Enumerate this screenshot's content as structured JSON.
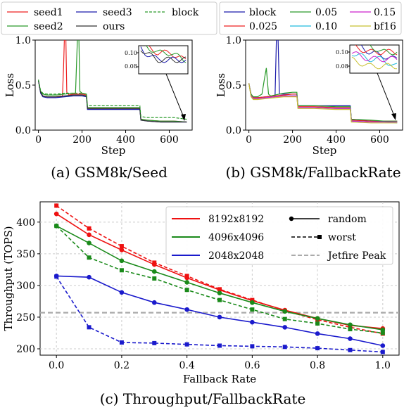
{
  "chart_data": [
    {
      "type": "line",
      "caption": "(a) GSM8k/Seed",
      "xlabel": "Step",
      "ylabel": "Loss",
      "xlim": [
        -15,
        705
      ],
      "ylim": [
        0.0,
        1.0
      ],
      "xticks": [
        "0",
        "200",
        "400",
        "600"
      ],
      "yticks": [
        "0.0",
        "0.5",
        "1.0"
      ],
      "legend_location": "top (outside, above plot)",
      "series": [
        {
          "name": "seed1",
          "color": "#ee2222",
          "dash": "solid",
          "x": [
            0,
            10,
            20,
            40,
            60,
            80,
            100,
            110,
            115,
            120,
            125,
            130,
            140,
            160,
            180,
            200,
            220,
            225,
            240,
            300,
            350,
            400,
            450,
            465,
            470,
            500,
            560,
            620,
            680
          ],
          "y": [
            0.55,
            0.42,
            0.38,
            0.37,
            0.37,
            0.37,
            0.38,
            0.37,
            0.7,
            1.1,
            1.1,
            0.42,
            0.39,
            0.4,
            0.4,
            0.4,
            0.39,
            0.24,
            0.24,
            0.24,
            0.24,
            0.24,
            0.24,
            0.24,
            0.12,
            0.11,
            0.1,
            0.1,
            0.09
          ]
        },
        {
          "name": "seed2",
          "color": "#2a9a2a",
          "dash": "solid",
          "x": [
            0,
            10,
            20,
            40,
            80,
            120,
            160,
            170,
            175,
            180,
            185,
            190,
            200,
            220,
            225,
            240,
            300,
            400,
            450,
            465,
            470,
            500,
            560,
            620,
            680
          ],
          "y": [
            0.55,
            0.43,
            0.4,
            0.39,
            0.39,
            0.4,
            0.41,
            0.41,
            0.75,
            1.1,
            1.1,
            0.43,
            0.41,
            0.4,
            0.25,
            0.25,
            0.25,
            0.25,
            0.25,
            0.25,
            0.12,
            0.11,
            0.1,
            0.1,
            0.09
          ]
        },
        {
          "name": "seed3",
          "color": "#1a1aaa",
          "dash": "solid",
          "x": [
            0,
            10,
            20,
            40,
            80,
            120,
            160,
            200,
            220,
            225,
            240,
            300,
            400,
            450,
            465,
            470,
            500,
            560,
            620,
            680
          ],
          "y": [
            0.55,
            0.41,
            0.37,
            0.36,
            0.36,
            0.37,
            0.38,
            0.38,
            0.37,
            0.23,
            0.23,
            0.23,
            0.23,
            0.23,
            0.23,
            0.11,
            0.1,
            0.09,
            0.09,
            0.09
          ]
        },
        {
          "name": "ours",
          "color": "#333333",
          "dash": "solid",
          "x": [
            0,
            10,
            20,
            40,
            80,
            120,
            160,
            200,
            220,
            225,
            240,
            300,
            400,
            450,
            465,
            470,
            500,
            560,
            620,
            680
          ],
          "y": [
            0.55,
            0.42,
            0.38,
            0.37,
            0.37,
            0.38,
            0.39,
            0.39,
            0.38,
            0.24,
            0.24,
            0.24,
            0.24,
            0.24,
            0.24,
            0.11,
            0.1,
            0.09,
            0.09,
            0.09
          ]
        },
        {
          "name": "block",
          "color": "#2a9a2a",
          "dash": "dashed",
          "x": [
            0,
            10,
            20,
            40,
            80,
            120,
            160,
            200,
            220,
            225,
            240,
            300,
            400,
            450,
            465,
            470,
            500,
            560,
            620,
            680
          ],
          "y": [
            0.56,
            0.44,
            0.41,
            0.4,
            0.4,
            0.41,
            0.41,
            0.41,
            0.4,
            0.27,
            0.27,
            0.27,
            0.27,
            0.27,
            0.27,
            0.15,
            0.14,
            0.14,
            0.14,
            0.12
          ]
        }
      ],
      "inset": {
        "yticks": [
          "0.10",
          "0.08"
        ],
        "ylim": [
          0.07,
          0.11
        ]
      }
    },
    {
      "type": "line",
      "caption": "(b) GSM8k/FallbackRate",
      "xlabel": "Step",
      "ylabel": "Loss",
      "xlim": [
        -15,
        705
      ],
      "ylim": [
        0.0,
        1.0
      ],
      "xticks": [
        "0",
        "200",
        "400",
        "600"
      ],
      "yticks": [
        "0.0",
        "0.5",
        "1.0"
      ],
      "legend_location": "top (outside, above plot)",
      "series": [
        {
          "name": "block",
          "color": "#1a1aaa",
          "dash": "solid",
          "x": [
            0,
            10,
            20,
            40,
            80,
            110,
            120,
            128,
            132,
            140,
            180,
            220,
            225,
            300,
            400,
            465,
            470,
            560,
            680
          ],
          "y": [
            0.52,
            0.4,
            0.36,
            0.36,
            0.37,
            0.38,
            0.38,
            1.2,
            1.2,
            0.4,
            0.4,
            0.4,
            0.27,
            0.27,
            0.27,
            0.27,
            0.12,
            0.1,
            0.09
          ]
        },
        {
          "name": "0.025",
          "color": "#ee2222",
          "dash": "solid",
          "x": [
            0,
            10,
            20,
            40,
            80,
            120,
            160,
            200,
            220,
            225,
            300,
            400,
            465,
            470,
            560,
            620,
            680
          ],
          "y": [
            0.52,
            0.39,
            0.36,
            0.36,
            0.37,
            0.38,
            0.39,
            0.4,
            0.4,
            0.26,
            0.26,
            0.25,
            0.25,
            0.11,
            0.1,
            0.1,
            0.1
          ]
        },
        {
          "name": "0.05",
          "color": "#2a9a2a",
          "dash": "solid",
          "x": [
            0,
            10,
            20,
            40,
            60,
            70,
            80,
            90,
            100,
            120,
            160,
            200,
            220,
            225,
            300,
            400,
            465,
            470,
            560,
            620,
            680
          ],
          "y": [
            0.52,
            0.4,
            0.37,
            0.37,
            0.4,
            0.55,
            0.69,
            0.4,
            0.38,
            0.39,
            0.41,
            0.42,
            0.42,
            0.27,
            0.27,
            0.26,
            0.26,
            0.12,
            0.11,
            0.1,
            0.1
          ]
        },
        {
          "name": "0.10",
          "color": "#22bbdd",
          "dash": "solid",
          "x": [
            0,
            10,
            20,
            40,
            80,
            120,
            160,
            200,
            220,
            225,
            300,
            400,
            465,
            470,
            560,
            620,
            680
          ],
          "y": [
            0.52,
            0.38,
            0.35,
            0.35,
            0.36,
            0.37,
            0.38,
            0.38,
            0.38,
            0.25,
            0.25,
            0.24,
            0.24,
            0.1,
            0.09,
            0.09,
            0.08
          ]
        },
        {
          "name": "0.15",
          "color": "#cc22cc",
          "dash": "solid",
          "x": [
            0,
            10,
            20,
            40,
            80,
            120,
            160,
            200,
            220,
            225,
            300,
            400,
            465,
            470,
            560,
            620,
            680
          ],
          "y": [
            0.52,
            0.38,
            0.35,
            0.35,
            0.36,
            0.37,
            0.38,
            0.38,
            0.38,
            0.25,
            0.25,
            0.24,
            0.24,
            0.1,
            0.09,
            0.09,
            0.09
          ]
        },
        {
          "name": "bf16",
          "color": "#c8c030",
          "dash": "solid",
          "x": [
            0,
            10,
            20,
            40,
            80,
            120,
            160,
            200,
            220,
            225,
            300,
            400,
            465,
            470,
            560,
            620,
            680
          ],
          "y": [
            0.52,
            0.37,
            0.34,
            0.34,
            0.35,
            0.36,
            0.37,
            0.37,
            0.37,
            0.24,
            0.24,
            0.23,
            0.23,
            0.09,
            0.08,
            0.08,
            0.08
          ]
        }
      ],
      "inset": {
        "yticks": [
          "0.10",
          "0.08"
        ],
        "ylim": [
          0.07,
          0.11
        ]
      }
    },
    {
      "type": "line",
      "caption": "(c) Throughput/FallbackRate",
      "xlabel": "Fallback Rate",
      "ylabel": "Throughput (TOPS)",
      "xlim": [
        -0.05,
        1.05
      ],
      "ylim": [
        190,
        432
      ],
      "xticks": [
        "0.0",
        "0.2",
        "0.4",
        "0.6",
        "0.8",
        "1.0"
      ],
      "yticks": [
        "200",
        "250",
        "300",
        "350",
        "400"
      ],
      "grid": true,
      "legend_location": "upper right",
      "x": [
        0.0,
        0.1,
        0.2,
        0.3,
        0.4,
        0.5,
        0.6,
        0.7,
        0.8,
        0.9,
        1.0
      ],
      "series": [
        {
          "name": "8192x8192",
          "color": "#ee1111",
          "marker": "circle",
          "dash": "solid",
          "values": [
            413,
            380,
            356,
            333,
            312,
            293,
            276,
            261,
            248,
            237,
            232
          ]
        },
        {
          "name": "8192x8192",
          "color": "#ee1111",
          "marker": "square",
          "dash": "dashed",
          "values": [
            426,
            390,
            362,
            336,
            315,
            294,
            277,
            260,
            246,
            234,
            224
          ]
        },
        {
          "name": "4096x4096",
          "color": "#1a8a1a",
          "marker": "circle",
          "dash": "solid",
          "values": [
            394,
            367,
            339,
            322,
            305,
            288,
            273,
            259,
            248,
            238,
            230
          ]
        },
        {
          "name": "4096x4096",
          "color": "#1a8a1a",
          "marker": "square",
          "dash": "dashed",
          "values": [
            394,
            344,
            324,
            311,
            293,
            277,
            262,
            247,
            240,
            231,
            225
          ]
        },
        {
          "name": "2048x2048",
          "color": "#1a1acc",
          "marker": "circle",
          "dash": "solid",
          "values": [
            315,
            313,
            289,
            273,
            262,
            250,
            242,
            234,
            224,
            216,
            205
          ]
        },
        {
          "name": "2048x2048",
          "color": "#1a1acc",
          "marker": "square",
          "dash": "dashed",
          "values": [
            314,
            234,
            210,
            209,
            207,
            205,
            204,
            203,
            201,
            198,
            195
          ]
        }
      ],
      "reference_line": {
        "name": "Jetfire Peak",
        "value": 257,
        "color": "#aaaaaa",
        "dash": "dashed"
      },
      "legend": {
        "sizes": [
          "8192x8192",
          "4096x4096",
          "2048x2048"
        ],
        "styles": [
          "random",
          "worst",
          "Jetfire Peak"
        ]
      }
    }
  ]
}
